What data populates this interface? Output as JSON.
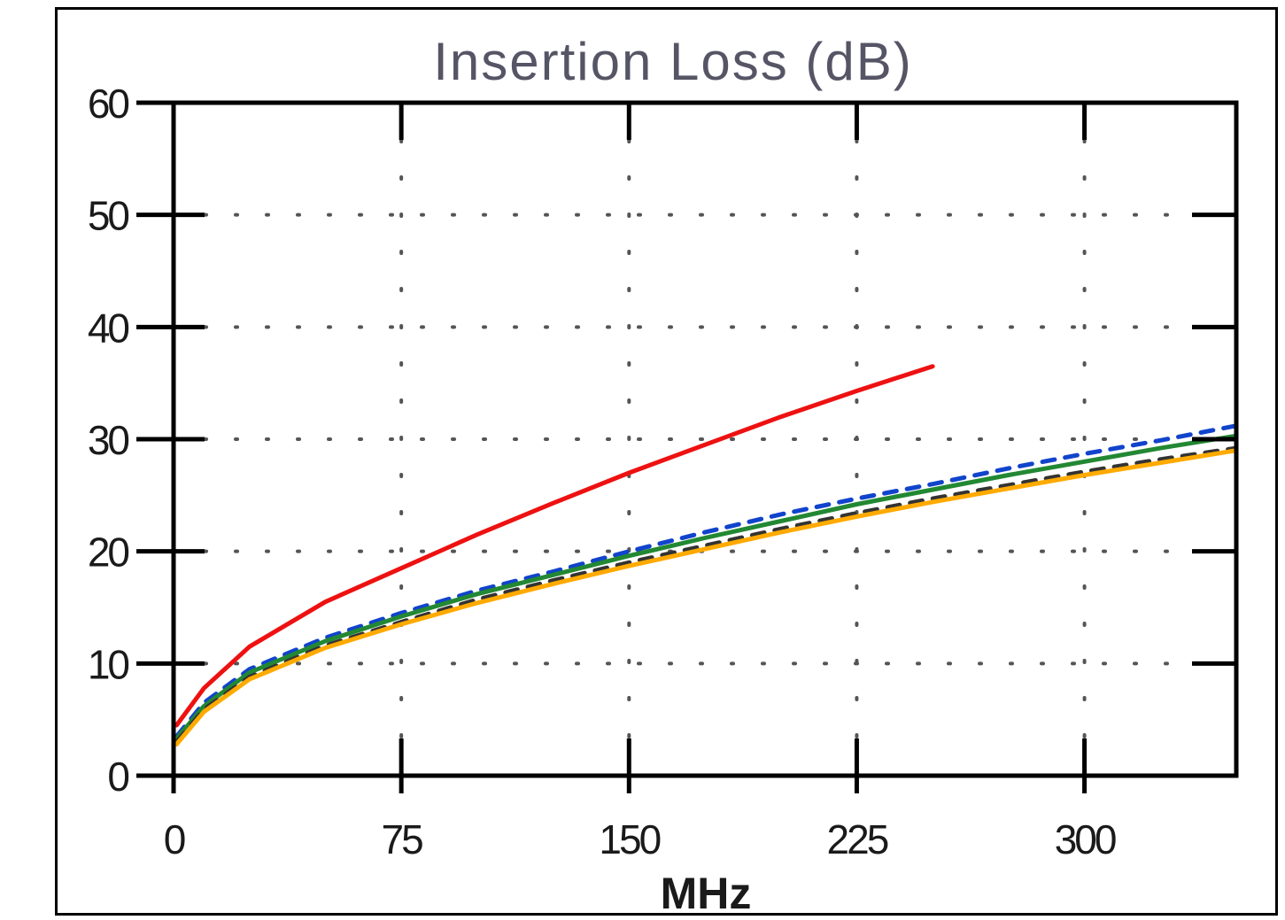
{
  "chart_data": {
    "type": "line",
    "title": "Insertion Loss (dB)",
    "xlabel": "MHz",
    "ylabel": "",
    "xlim": [
      0,
      350
    ],
    "ylim": [
      0,
      60
    ],
    "x_ticks": [
      "0",
      "75",
      "150",
      "225",
      "300"
    ],
    "y_ticks": [
      "0",
      "10",
      "20",
      "30",
      "40",
      "50",
      "60"
    ],
    "grid": "dotted",
    "legend": "none",
    "series": [
      {
        "color": "#ee1111",
        "style": "solid",
        "x": [
          1,
          10,
          25,
          50,
          75,
          100,
          125,
          150,
          175,
          200,
          225,
          250
        ],
        "y": [
          4.5,
          7.8,
          11.5,
          15.5,
          18.5,
          21.5,
          24.3,
          27.0,
          29.5,
          32.0,
          34.3,
          36.5
        ]
      },
      {
        "color": "#1144cc",
        "style": "dashed",
        "x": [
          1,
          10,
          25,
          50,
          75,
          100,
          125,
          150,
          175,
          200,
          225,
          250,
          275,
          300,
          325,
          350
        ],
        "y": [
          3.5,
          6.5,
          9.5,
          12.3,
          14.5,
          16.5,
          18.2,
          20.0,
          21.7,
          23.3,
          24.7,
          26.0,
          27.4,
          28.7,
          29.9,
          31.2
        ]
      },
      {
        "color": "#228833",
        "style": "solid",
        "x": [
          1,
          10,
          25,
          50,
          75,
          100,
          125,
          150,
          175,
          200,
          225,
          250,
          275,
          300,
          325,
          350
        ],
        "y": [
          3.3,
          6.2,
          9.2,
          12.0,
          14.2,
          16.2,
          17.9,
          19.6,
          21.2,
          22.7,
          24.2,
          25.5,
          26.8,
          28.0,
          29.2,
          30.3
        ]
      },
      {
        "color": "#333333",
        "style": "dashed",
        "x": [
          1,
          10,
          25,
          50,
          75,
          100,
          125,
          150,
          175,
          200,
          225,
          250,
          275,
          300,
          325,
          350
        ],
        "y": [
          3.0,
          5.9,
          8.8,
          11.6,
          13.7,
          15.7,
          17.4,
          19.0,
          20.5,
          22.0,
          23.4,
          24.7,
          25.9,
          27.1,
          28.2,
          29.2
        ]
      },
      {
        "color": "#ffaa00",
        "style": "solid",
        "x": [
          1,
          10,
          25,
          50,
          75,
          100,
          125,
          150,
          175,
          200,
          225,
          250,
          275,
          300,
          325,
          350
        ],
        "y": [
          2.8,
          5.7,
          8.6,
          11.4,
          13.5,
          15.4,
          17.1,
          18.7,
          20.2,
          21.7,
          23.1,
          24.4,
          25.6,
          26.8,
          27.9,
          29.0
        ]
      }
    ]
  }
}
